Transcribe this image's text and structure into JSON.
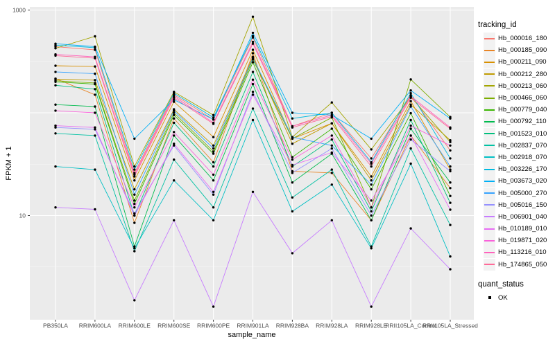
{
  "figure": {
    "y_axis_title": "FPKM + 1",
    "x_axis_title": "sample_name",
    "legend_title": "tracking_id",
    "quant_legend_title": "quant_status",
    "quant_legend_item": "OK"
  },
  "colors": {
    "panel_bg": "#EBEBEB",
    "grid_major": "#FFFFFF",
    "grid_minor": "#F7F7F7",
    "tick_text": "#4D4D4D",
    "tick_mark": "#333333",
    "point": "#000000",
    "legend_key_bg": "#F2F2F2"
  },
  "chart_data": {
    "type": "line",
    "title": "",
    "xlabel": "sample_name",
    "ylabel": "FPKM + 1",
    "y_scale": "log10",
    "ylim": [
      0.97,
      1070
    ],
    "y_tick_labels": [
      {
        "value": 1000,
        "label": "1000"
      },
      {
        "value": 10,
        "label": "10"
      }
    ],
    "y_major_gridlines": [
      10,
      100,
      1000
    ],
    "y_minor_gridlines": [
      3.162,
      31.62,
      316.2
    ],
    "grid": true,
    "legend_position": "right",
    "point_shape": "filled-circle",
    "point_legend": {
      "title": "quant_status",
      "items": [
        "OK"
      ]
    },
    "categories": [
      "PB350LA",
      "RRIM600LA",
      "RRIM600LE",
      "RRIM600SE",
      "RRIM600PE",
      "RRIM901LA",
      "RRIM928BA",
      "RRIM928LA",
      "RRIM928LE",
      "RRII105LA_Control",
      "RRII105LA_Stressed"
    ],
    "series": [
      {
        "name": "Hb_000016_180",
        "color": "#F8766D",
        "values": [
          440,
          410,
          26,
          150,
          86,
          540,
          74,
          100,
          36,
          148,
          43
        ]
      },
      {
        "name": "Hb_000185_090",
        "color": "#E88526",
        "values": [
          215,
          150,
          8.5,
          88,
          33,
          380,
          27,
          26,
          9,
          60,
          18.5
        ]
      },
      {
        "name": "Hb_000211_090",
        "color": "#D89000",
        "values": [
          287,
          282,
          22,
          128,
          58,
          410,
          56,
          79,
          24,
          130,
          28
        ]
      },
      {
        "name": "Hb_000212_280",
        "color": "#C09B00",
        "values": [
          212,
          208,
          18,
          108,
          48,
          350,
          50,
          79,
          22,
          120,
          54
        ]
      },
      {
        "name": "Hb_000213_060",
        "color": "#A3A500",
        "values": [
          424,
          555,
          30,
          160,
          95,
          860,
          58,
          126,
          44,
          143,
          52
        ]
      },
      {
        "name": "Hb_000466_060",
        "color": "#7CAE00",
        "values": [
          205,
          195,
          14,
          100,
          42,
          330,
          56,
          90,
          12,
          211,
          91
        ]
      },
      {
        "name": "Hb_000779_040",
        "color": "#39B600",
        "values": [
          200,
          190,
          13,
          95,
          40,
          310,
          37,
          70,
          18,
          99,
          15.5
        ]
      },
      {
        "name": "Hb_000792_110",
        "color": "#00BB4E",
        "values": [
          120,
          115,
          5,
          60,
          22,
          190,
          21,
          40,
          9,
          70,
          21
        ]
      },
      {
        "name": "Hb_001523_010",
        "color": "#00BF7D",
        "values": [
          185,
          170,
          10,
          80,
          30,
          250,
          30,
          55,
          11,
          85,
          13.3
        ]
      },
      {
        "name": "Hb_002837_070",
        "color": "#00C1A3",
        "values": [
          63,
          60,
          4.5,
          35,
          12,
          110,
          15,
          28,
          5,
          45,
          8.1
        ]
      },
      {
        "name": "Hb_002918_070",
        "color": "#00BFC4",
        "values": [
          30,
          28,
          4.8,
          22,
          9,
          85,
          11,
          20,
          4.8,
          32,
          4
        ]
      },
      {
        "name": "Hb_003226_170",
        "color": "#00BAE0",
        "values": [
          455,
          430,
          28,
          155,
          90,
          560,
          88,
          100,
          33,
          155,
          36
        ]
      },
      {
        "name": "Hb_003673_020",
        "color": "#00B0F6",
        "values": [
          470,
          440,
          56,
          134,
          86,
          600,
          100,
          95,
          56,
          165,
          88
        ]
      },
      {
        "name": "Hb_005000_270",
        "color": "#35A2FF",
        "values": [
          250,
          240,
          16,
          105,
          45,
          340,
          58,
          48,
          20,
          115,
          30
        ]
      },
      {
        "name": "Hb_005016_150",
        "color": "#9590FF",
        "values": [
          72,
          69,
          10.5,
          48,
          16,
          160,
          26,
          45,
          10,
          55,
          27
        ]
      },
      {
        "name": "Hb_006901_040",
        "color": "#C77CFF",
        "values": [
          12,
          11.5,
          1.5,
          9,
          1.3,
          17,
          4.3,
          9,
          1.3,
          7.5,
          3
        ]
      },
      {
        "name": "Hb_010189_010",
        "color": "#E76BF3",
        "values": [
          75,
          72,
          10,
          50,
          17,
          150,
          31,
          41,
          14,
          60,
          11.4
        ]
      },
      {
        "name": "Hb_019871_020",
        "color": "#FA62DB",
        "values": [
          105,
          100,
          12,
          65,
          25,
          210,
          35,
          60,
          12,
          75,
          48
        ]
      },
      {
        "name": "Hb_113216_010",
        "color": "#FF62BC",
        "values": [
          370,
          350,
          25,
          145,
          80,
          490,
          74,
          95,
          32,
          145,
          72
        ]
      },
      {
        "name": "Hb_174865_050",
        "color": "#FF6A98",
        "values": [
          360,
          340,
          24,
          140,
          78,
          470,
          72,
          92,
          30,
          140,
          70
        ]
      }
    ]
  }
}
